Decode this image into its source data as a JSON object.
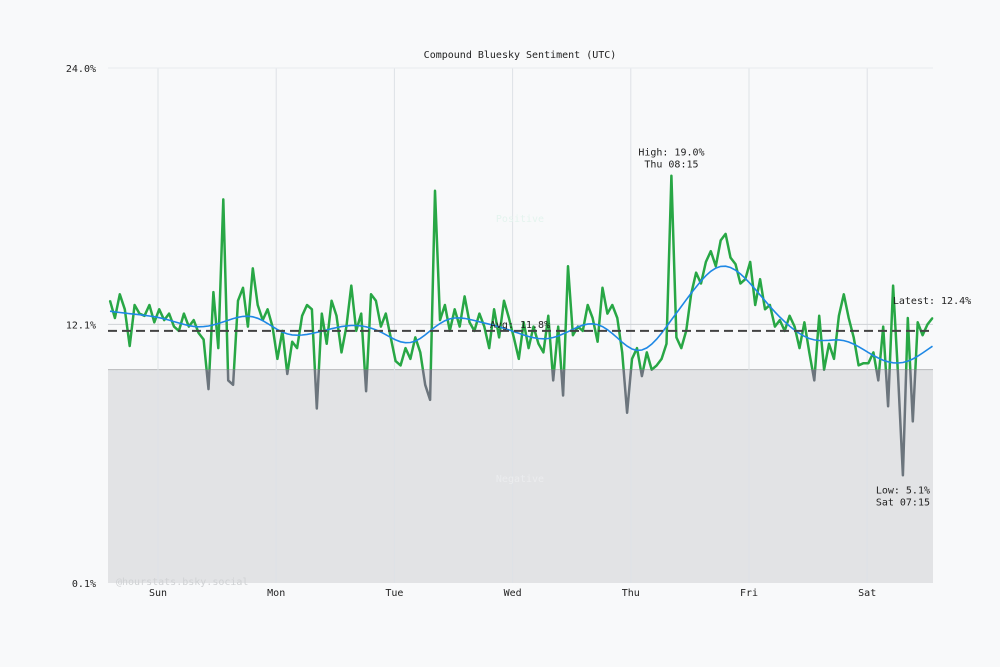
{
  "chart_data": {
    "type": "line",
    "title": "Compound Bluesky Sentiment (UTC)",
    "xlabel": "",
    "ylabel": "",
    "ylim": [
      0.1,
      24.0
    ],
    "y_ticks": [
      "24.0%",
      "12.1%",
      "0.1%"
    ],
    "y_tick_values": [
      24.0,
      12.1,
      0.1
    ],
    "x_ticks": [
      "Sun",
      "Mon",
      "Tue",
      "Wed",
      "Thu",
      "Fri",
      "Sat"
    ],
    "grid": true,
    "neutral_threshold": 10.0,
    "zone_labels": {
      "positive": "Positive",
      "negative": "Negative"
    },
    "average": {
      "value": 11.8,
      "label": "Avg: 11.8%"
    },
    "high": {
      "value": 19.0,
      "label": "High: 19.0%",
      "time": "Thu 08:15"
    },
    "low": {
      "value": 5.1,
      "label": "Low: 5.1%",
      "time": "Sat 07:15"
    },
    "latest": {
      "value": 12.4,
      "label": "Latest: 12.4%"
    },
    "watermark": "@hourstats.bsky.social",
    "colors": {
      "positive_line": "#28a745",
      "negative_line": "#6c757d",
      "trend": "#1e88e5",
      "average": "#444444",
      "negative_zone": "#e2e3e5",
      "background": "#f8f9fa"
    },
    "x": [
      "Sat 14:15",
      "Sat 15:15",
      "Sat 16:15",
      "Sat 17:15",
      "Sat 18:15",
      "Sat 19:15",
      "Sat 20:15",
      "Sat 21:15",
      "Sat 22:15",
      "Sat 23:15",
      "Sun 00:15",
      "Sun 01:15",
      "Sun 02:15",
      "Sun 03:15",
      "Sun 04:15",
      "Sun 05:15",
      "Sun 06:15",
      "Sun 07:15",
      "Sun 08:15",
      "Sun 09:15",
      "Sun 10:15",
      "Sun 11:15",
      "Sun 12:15",
      "Sun 13:15",
      "Sun 14:15",
      "Sun 15:15",
      "Sun 16:15",
      "Sun 17:15",
      "Sun 18:15",
      "Sun 19:15",
      "Sun 20:15",
      "Sun 21:15",
      "Sun 22:15",
      "Sun 23:15",
      "Mon 00:15",
      "Mon 01:15",
      "Mon 02:15",
      "Mon 03:15",
      "Mon 04:15",
      "Mon 05:15",
      "Mon 06:15",
      "Mon 07:15",
      "Mon 08:15",
      "Mon 09:15",
      "Mon 10:15",
      "Mon 11:15",
      "Mon 12:15",
      "Mon 13:15",
      "Mon 14:15",
      "Mon 15:15",
      "Mon 16:15",
      "Mon 17:15",
      "Mon 18:15",
      "Mon 19:15",
      "Mon 20:15",
      "Mon 21:15",
      "Mon 22:15",
      "Mon 23:15",
      "Tue 00:15",
      "Tue 01:15",
      "Tue 02:15",
      "Tue 03:15",
      "Tue 04:15",
      "Tue 05:15",
      "Tue 06:15",
      "Tue 07:15",
      "Tue 08:15",
      "Tue 09:15",
      "Tue 10:15",
      "Tue 11:15",
      "Tue 12:15",
      "Tue 13:15",
      "Tue 14:15",
      "Tue 15:15",
      "Tue 16:15",
      "Tue 17:15",
      "Tue 18:15",
      "Tue 19:15",
      "Tue 20:15",
      "Tue 21:15",
      "Tue 22:15",
      "Tue 23:15",
      "Wed 00:15",
      "Wed 01:15",
      "Wed 02:15",
      "Wed 03:15",
      "Wed 04:15",
      "Wed 05:15",
      "Wed 06:15",
      "Wed 07:15",
      "Wed 08:15",
      "Wed 09:15",
      "Wed 10:15",
      "Wed 11:15",
      "Wed 12:15",
      "Wed 13:15",
      "Wed 14:15",
      "Wed 15:15",
      "Wed 16:15",
      "Wed 17:15",
      "Wed 18:15",
      "Wed 19:15",
      "Wed 20:15",
      "Wed 21:15",
      "Wed 22:15",
      "Wed 23:15",
      "Thu 00:15",
      "Thu 01:15",
      "Thu 02:15",
      "Thu 03:15",
      "Thu 04:15",
      "Thu 05:15",
      "Thu 06:15",
      "Thu 07:15",
      "Thu 08:15",
      "Thu 09:15",
      "Thu 10:15",
      "Thu 11:15",
      "Thu 12:15",
      "Thu 13:15",
      "Thu 14:15",
      "Thu 15:15",
      "Thu 16:15",
      "Thu 17:15",
      "Thu 18:15",
      "Thu 19:15",
      "Thu 20:15",
      "Thu 21:15",
      "Thu 22:15",
      "Thu 23:15",
      "Fri 00:15",
      "Fri 01:15",
      "Fri 02:15",
      "Fri 03:15",
      "Fri 04:15",
      "Fri 05:15",
      "Fri 06:15",
      "Fri 07:15",
      "Fri 08:15",
      "Fri 09:15",
      "Fri 10:15",
      "Fri 11:15",
      "Fri 12:15",
      "Fri 13:15",
      "Fri 14:15",
      "Fri 15:15",
      "Fri 16:15",
      "Fri 17:15",
      "Fri 18:15",
      "Fri 19:15",
      "Fri 20:15",
      "Fri 21:15",
      "Fri 22:15",
      "Fri 23:15",
      "Sat 00:15",
      "Sat 01:15",
      "Sat 02:15",
      "Sat 03:15",
      "Sat 04:15",
      "Sat 05:15",
      "Sat 06:15",
      "Sat 07:15",
      "Sat 08:15",
      "Sat 09:15",
      "Sat 10:15",
      "Sat 11:15",
      "Sat 12:15",
      "Sat 13:15"
    ],
    "values": [
      13.2,
      12.4,
      13.5,
      12.8,
      11.1,
      13.0,
      12.6,
      12.5,
      13.0,
      12.2,
      12.8,
      12.3,
      12.6,
      12.0,
      11.8,
      12.6,
      12.0,
      12.3,
      11.7,
      11.4,
      9.1,
      13.6,
      11.0,
      17.9,
      9.5,
      9.3,
      13.2,
      13.8,
      12.0,
      14.7,
      13.0,
      12.3,
      12.8,
      12.0,
      10.5,
      11.8,
      9.8,
      11.3,
      11.0,
      12.5,
      13.0,
      12.8,
      8.2,
      12.6,
      11.2,
      13.2,
      12.5,
      10.8,
      12.0,
      13.9,
      11.8,
      12.6,
      9.0,
      13.5,
      13.2,
      12.0,
      12.6,
      11.5,
      10.4,
      10.2,
      11.0,
      10.5,
      11.5,
      10.8,
      9.3,
      8.6,
      18.3,
      12.3,
      13.0,
      11.8,
      12.8,
      12.0,
      13.4,
      12.2,
      11.8,
      12.6,
      12.0,
      11.0,
      12.8,
      11.5,
      13.2,
      12.4,
      11.5,
      10.5,
      12.2,
      11.0,
      12.0,
      11.2,
      10.8,
      12.5,
      9.5,
      12.0,
      8.8,
      14.8,
      11.6,
      12.0,
      11.8,
      13.0,
      12.4,
      11.3,
      13.8,
      12.6,
      13.0,
      12.4,
      10.8,
      8.0,
      10.5,
      11.0,
      9.7,
      10.8,
      10.0,
      10.2,
      10.5,
      11.2,
      19.0,
      11.5,
      11.0,
      11.8,
      13.5,
      14.5,
      14.0,
      15.0,
      15.5,
      14.8,
      16.0,
      16.3,
      15.2,
      14.9,
      14.0,
      14.2,
      15.0,
      13.0,
      14.2,
      12.8,
      13.0,
      12.0,
      12.3,
      11.8,
      12.5,
      12.0,
      11.0,
      12.2,
      10.8,
      9.5,
      12.5,
      10.0,
      11.2,
      10.5,
      12.5,
      13.5,
      12.4,
      11.5,
      10.2,
      10.3,
      10.3,
      10.8,
      9.5,
      12.0,
      8.3,
      13.9,
      9.8,
      5.1,
      12.4,
      7.6,
      12.2,
      11.6,
      12.1,
      12.4
    ]
  }
}
